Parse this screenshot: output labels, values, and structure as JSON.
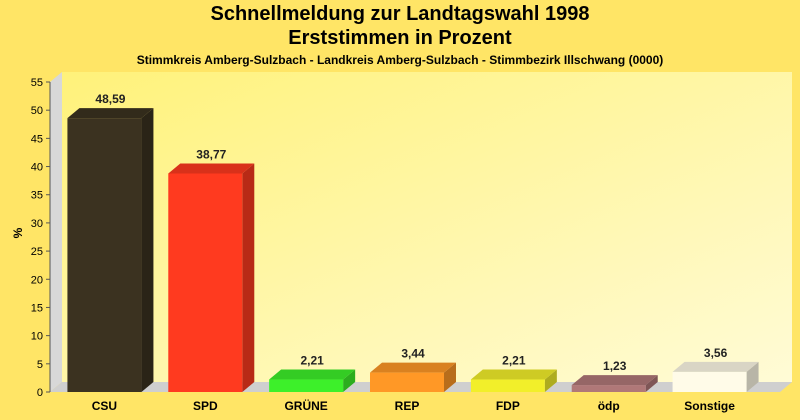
{
  "chart_data": {
    "type": "bar",
    "title": "Schnellmeldung zur Landtagswahl 1998",
    "subtitle_1": "Erststimmen in Prozent",
    "subtitle_2": "Stimmkreis Amberg-Sulzbach - Landkreis Amberg-Sulzbach - Stimmbezirk Illschwang (0000)",
    "ylabel": "%",
    "xlabel": "",
    "ylim": [
      0,
      55
    ],
    "yticks": [
      0,
      5,
      10,
      15,
      20,
      25,
      30,
      35,
      40,
      45,
      50,
      55
    ],
    "grid": false,
    "legend": "none",
    "categories": [
      "CSU",
      "SPD",
      "GRÜNE",
      "REP",
      "FDP",
      "ödp",
      "Sonstige"
    ],
    "values": [
      48.59,
      38.77,
      2.21,
      3.44,
      2.21,
      1.23,
      3.56
    ],
    "value_labels": [
      "48,59",
      "38,77",
      "2,21",
      "3,44",
      "2,21",
      "1,23",
      "3,56"
    ],
    "colors": [
      "#3b3220",
      "#ff3a1f",
      "#3df02a",
      "#ff9826",
      "#f2ef2a",
      "#b07878",
      "#fffbe8"
    ]
  }
}
